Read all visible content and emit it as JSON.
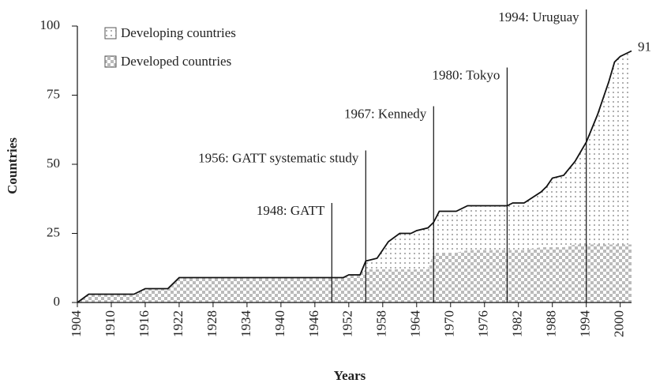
{
  "chart_data": {
    "type": "area",
    "x_label": "Years",
    "y_label": "Countries",
    "x": [
      1904,
      1906,
      1914,
      1916,
      1920,
      1922,
      1951,
      1952,
      1954,
      1955,
      1957,
      1959,
      1961,
      1963,
      1964,
      1966,
      1967,
      1968,
      1971,
      1973,
      1980,
      1981,
      1983,
      1986,
      1987,
      1988,
      1990,
      1992,
      1994,
      1996,
      1998,
      1999,
      2000,
      2002
    ],
    "series": [
      {
        "name": "Developed countries",
        "color": "#d0d0d0",
        "values": [
          0,
          3,
          3,
          5,
          5,
          9,
          9,
          10,
          10,
          12,
          12,
          12,
          12,
          12,
          12,
          12,
          18,
          18,
          18,
          19,
          19,
          19,
          19,
          20,
          20,
          20,
          20,
          21,
          21,
          21,
          21,
          21,
          21,
          21
        ]
      },
      {
        "name": "Developing countries",
        "color": "#bdbdbd",
        "values": [
          0,
          0,
          0,
          0,
          0,
          0,
          0,
          0,
          0,
          3,
          4,
          10,
          13,
          13,
          14,
          15,
          11,
          15,
          15,
          16,
          16,
          17,
          17,
          20,
          22,
          25,
          26,
          30,
          37,
          47,
          59,
          66,
          68,
          70
        ]
      }
    ],
    "end_label": 91,
    "annotations": [
      {
        "x": 1949,
        "label": "1948: GATT"
      },
      {
        "x": 1955,
        "label": "1956: GATT systematic study"
      },
      {
        "x": 1967,
        "label": "1967: Kennedy"
      },
      {
        "x": 1980,
        "label": "1980: Tokyo"
      },
      {
        "x": 1994,
        "label": "1994: Uruguay"
      }
    ],
    "xlim": [
      1904,
      2002
    ],
    "xticks": [
      1904,
      1910,
      1916,
      1922,
      1928,
      1934,
      1940,
      1946,
      1952,
      1958,
      1964,
      1970,
      1976,
      1982,
      1988,
      1994,
      2000
    ],
    "ylim": [
      0,
      100
    ],
    "yticks": [
      0,
      25,
      50,
      75,
      100
    ]
  }
}
